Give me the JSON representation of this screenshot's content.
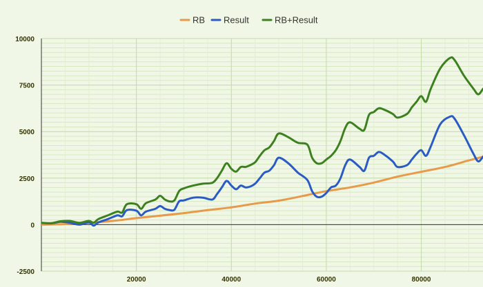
{
  "chart_data": {
    "type": "line",
    "title": "",
    "xlabel": "",
    "ylabel": "",
    "xlim": [
      0,
      93000
    ],
    "ylim": [
      -2500,
      10000
    ],
    "x_ticks": [
      20000,
      40000,
      60000,
      80000
    ],
    "x_tick_labels": [
      "20000",
      "40000",
      "60000",
      "80000"
    ],
    "y_ticks": [
      -2500,
      0,
      2500,
      5000,
      7500,
      10000
    ],
    "y_tick_labels": [
      "-2500",
      "0",
      "2500",
      "5000",
      "7500",
      "10000"
    ],
    "grid": true,
    "legend": "top-center",
    "series": [
      {
        "name": "RB",
        "color": "#e69a4a",
        "points": [
          [
            0,
            0
          ],
          [
            5000,
            30
          ],
          [
            10000,
            100
          ],
          [
            15000,
            200
          ],
          [
            20000,
            350
          ],
          [
            25000,
            480
          ],
          [
            30000,
            620
          ],
          [
            35000,
            780
          ],
          [
            40000,
            930
          ],
          [
            45000,
            1130
          ],
          [
            50000,
            1290
          ],
          [
            55000,
            1540
          ],
          [
            60000,
            1800
          ],
          [
            65000,
            2000
          ],
          [
            70000,
            2260
          ],
          [
            75000,
            2580
          ],
          [
            80000,
            2840
          ],
          [
            85000,
            3100
          ],
          [
            90000,
            3450
          ],
          [
            93000,
            3650
          ]
        ]
      },
      {
        "name": "Result",
        "color": "#2a5bc4",
        "points": [
          [
            0,
            100
          ],
          [
            2000,
            70
          ],
          [
            4000,
            150
          ],
          [
            6000,
            100
          ],
          [
            8000,
            0
          ],
          [
            10000,
            120
          ],
          [
            11000,
            -50
          ],
          [
            12000,
            120
          ],
          [
            14000,
            300
          ],
          [
            16000,
            500
          ],
          [
            17000,
            450
          ],
          [
            18000,
            780
          ],
          [
            20000,
            750
          ],
          [
            21000,
            500
          ],
          [
            22000,
            700
          ],
          [
            24000,
            850
          ],
          [
            25000,
            1000
          ],
          [
            26000,
            850
          ],
          [
            27000,
            780
          ],
          [
            28000,
            800
          ],
          [
            29000,
            1250
          ],
          [
            30000,
            1300
          ],
          [
            32000,
            1450
          ],
          [
            34000,
            1450
          ],
          [
            36000,
            1350
          ],
          [
            37000,
            1650
          ],
          [
            38000,
            2000
          ],
          [
            39000,
            2350
          ],
          [
            40000,
            2100
          ],
          [
            41000,
            1900
          ],
          [
            42000,
            2100
          ],
          [
            43000,
            2000
          ],
          [
            44000,
            2050
          ],
          [
            45000,
            2200
          ],
          [
            46000,
            2500
          ],
          [
            47000,
            2800
          ],
          [
            48000,
            2900
          ],
          [
            49000,
            3200
          ],
          [
            50000,
            3600
          ],
          [
            52000,
            3300
          ],
          [
            54000,
            2800
          ],
          [
            56000,
            2400
          ],
          [
            57000,
            1800
          ],
          [
            58000,
            1500
          ],
          [
            59000,
            1500
          ],
          [
            60000,
            1700
          ],
          [
            61000,
            2000
          ],
          [
            62000,
            2100
          ],
          [
            63000,
            2500
          ],
          [
            64000,
            3200
          ],
          [
            65000,
            3500
          ],
          [
            67000,
            3100
          ],
          [
            68000,
            2900
          ],
          [
            69000,
            3600
          ],
          [
            70000,
            3700
          ],
          [
            71000,
            3900
          ],
          [
            72000,
            3800
          ],
          [
            74000,
            3400
          ],
          [
            75000,
            3100
          ],
          [
            77000,
            3200
          ],
          [
            78000,
            3500
          ],
          [
            79000,
            3800
          ],
          [
            80000,
            4000
          ],
          [
            81000,
            3700
          ],
          [
            82000,
            4200
          ],
          [
            84000,
            5400
          ],
          [
            86000,
            5800
          ],
          [
            87000,
            5700
          ],
          [
            89000,
            4800
          ],
          [
            91000,
            3800
          ],
          [
            92000,
            3400
          ],
          [
            93000,
            3650
          ]
        ]
      },
      {
        "name": "RB+Result",
        "color": "#3d8020",
        "points": [
          [
            0,
            100
          ],
          [
            2000,
            80
          ],
          [
            4000,
            180
          ],
          [
            6000,
            200
          ],
          [
            8000,
            100
          ],
          [
            10000,
            200
          ],
          [
            11000,
            100
          ],
          [
            12000,
            300
          ],
          [
            14000,
            500
          ],
          [
            16000,
            700
          ],
          [
            17000,
            650
          ],
          [
            18000,
            1100
          ],
          [
            20000,
            1100
          ],
          [
            21000,
            850
          ],
          [
            22000,
            1150
          ],
          [
            24000,
            1350
          ],
          [
            25000,
            1550
          ],
          [
            26000,
            1350
          ],
          [
            27000,
            1250
          ],
          [
            28000,
            1300
          ],
          [
            29000,
            1800
          ],
          [
            30000,
            1950
          ],
          [
            32000,
            2100
          ],
          [
            34000,
            2200
          ],
          [
            36000,
            2250
          ],
          [
            37000,
            2500
          ],
          [
            38000,
            2900
          ],
          [
            39000,
            3300
          ],
          [
            40000,
            3000
          ],
          [
            41000,
            2850
          ],
          [
            42000,
            3100
          ],
          [
            43000,
            3100
          ],
          [
            44000,
            3200
          ],
          [
            45000,
            3350
          ],
          [
            46000,
            3700
          ],
          [
            47000,
            4000
          ],
          [
            48000,
            4150
          ],
          [
            49000,
            4500
          ],
          [
            50000,
            4900
          ],
          [
            52000,
            4700
          ],
          [
            54000,
            4400
          ],
          [
            56000,
            4300
          ],
          [
            57000,
            3600
          ],
          [
            58000,
            3300
          ],
          [
            59000,
            3300
          ],
          [
            60000,
            3500
          ],
          [
            61000,
            3700
          ],
          [
            62000,
            4000
          ],
          [
            63000,
            4500
          ],
          [
            64000,
            5200
          ],
          [
            65000,
            5500
          ],
          [
            67000,
            5150
          ],
          [
            68000,
            5100
          ],
          [
            69000,
            5900
          ],
          [
            70000,
            6050
          ],
          [
            71000,
            6250
          ],
          [
            72000,
            6200
          ],
          [
            74000,
            5950
          ],
          [
            75000,
            5750
          ],
          [
            77000,
            5950
          ],
          [
            78000,
            6300
          ],
          [
            79000,
            6600
          ],
          [
            80000,
            6900
          ],
          [
            81000,
            6600
          ],
          [
            82000,
            7300
          ],
          [
            84000,
            8400
          ],
          [
            86000,
            8950
          ],
          [
            87000,
            8850
          ],
          [
            89000,
            8000
          ],
          [
            91000,
            7300
          ],
          [
            92000,
            7000
          ],
          [
            93000,
            7300
          ]
        ]
      }
    ]
  }
}
